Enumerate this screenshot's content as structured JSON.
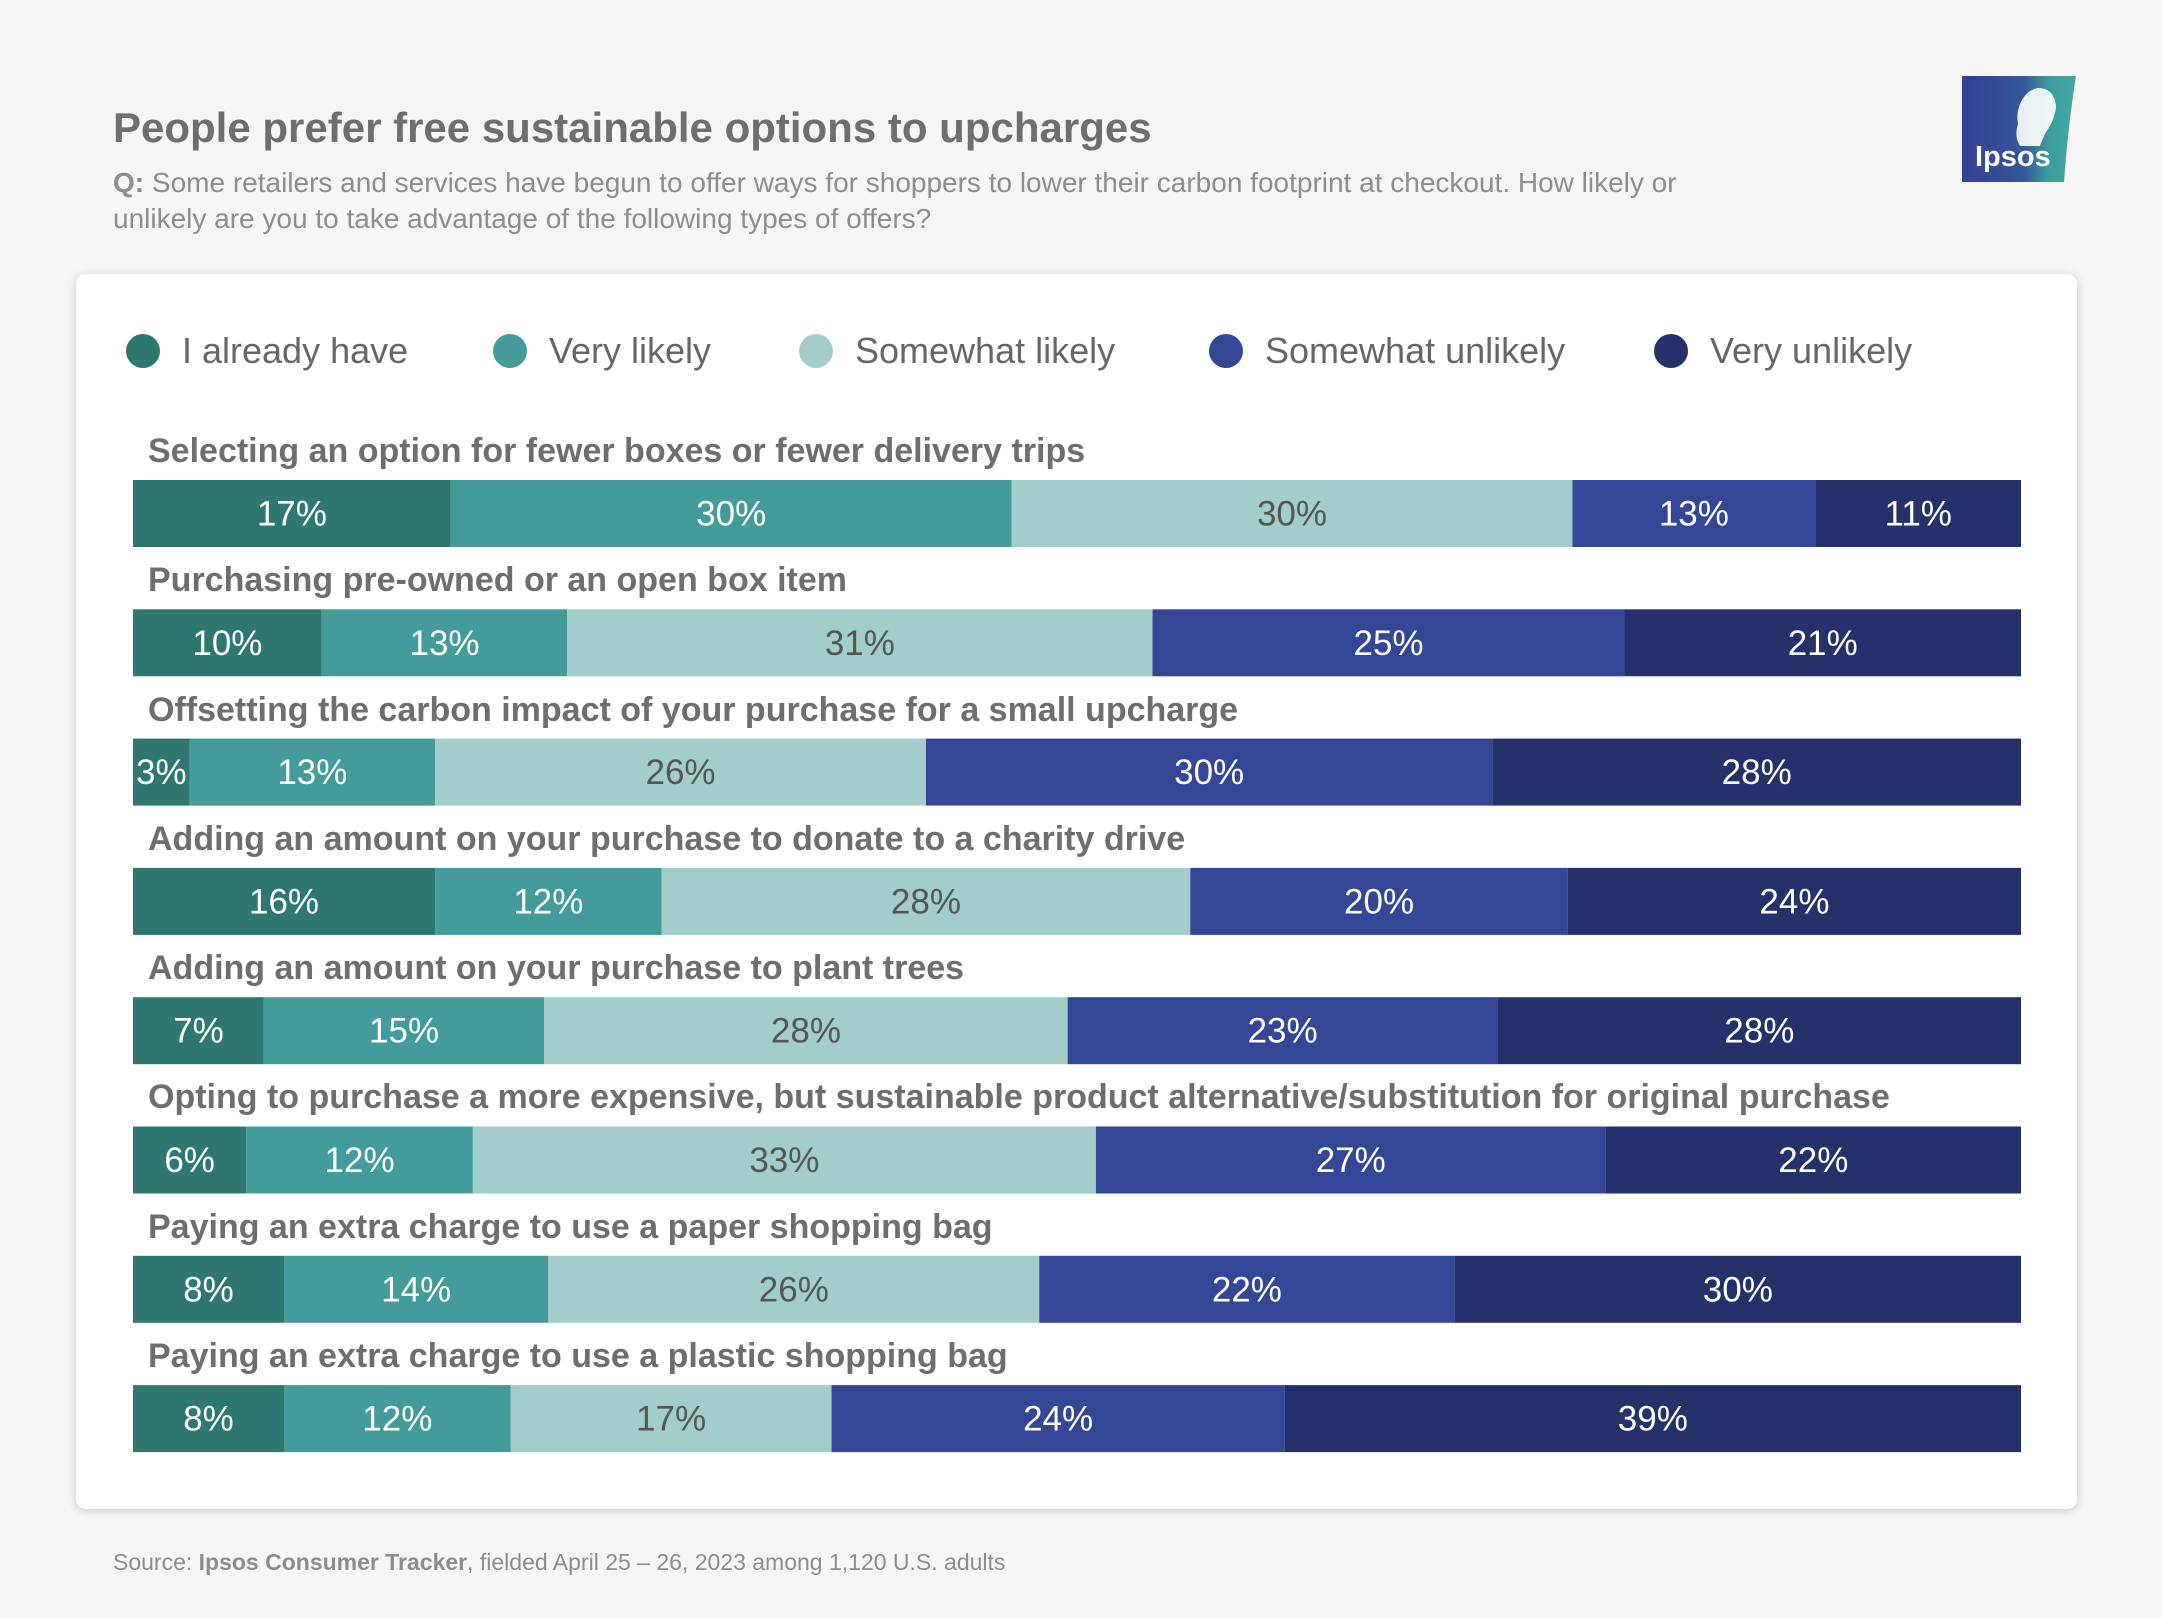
{
  "header": {
    "title": "People prefer free sustainable options to upcharges",
    "question_label": "Q:",
    "question_text": "Some retailers and services have begun to offer ways for shoppers to lower their carbon footprint at checkout. How likely or unlikely are you to take advantage of the following types of offers?"
  },
  "logo": {
    "text": "Ipsos",
    "colors": [
      "#333f94",
      "#3c9c9b"
    ]
  },
  "footer": {
    "source_label": "Source: ",
    "source_name": "Ipsos Consumer Tracker",
    "source_detail": ", fielded April 25 – 26, 2023 among 1,120 U.S. adults"
  },
  "chart_data": {
    "type": "bar",
    "orientation": "horizontal",
    "stacked": true,
    "unit": "%",
    "legend_position": "top",
    "categories": [
      "Selecting an option for fewer boxes or fewer delivery trips",
      "Purchasing pre-owned or an open box item",
      "Offsetting the carbon impact of your purchase for a small upcharge",
      "Adding an amount on your purchase to donate to a charity drive",
      "Adding an amount on your purchase to plant trees",
      "Opting to purchase a more expensive, but sustainable product alternative/substitution for original purchase",
      "Paying an extra charge to use a paper shopping bag",
      "Paying an extra charge to use a plastic shopping bag"
    ],
    "series": [
      {
        "name": "I already have",
        "color": "#2e7871",
        "label_color": "#ffffff",
        "values": [
          17,
          10,
          3,
          16,
          7,
          6,
          8,
          8
        ]
      },
      {
        "name": "Very likely",
        "color": "#439b9a",
        "label_color": "#ffffff",
        "values": [
          30,
          13,
          13,
          12,
          15,
          12,
          14,
          12
        ]
      },
      {
        "name": "Somewhat likely",
        "color": "#a3cdcb",
        "label_color": "#555555",
        "values": [
          30,
          31,
          26,
          28,
          28,
          33,
          26,
          17
        ]
      },
      {
        "name": "Somewhat unlikely",
        "color": "#334796",
        "label_color": "#ffffff",
        "values": [
          13,
          25,
          30,
          20,
          23,
          27,
          22,
          24
        ]
      },
      {
        "name": "Very unlikely",
        "color": "#25316b",
        "label_color": "#ffffff",
        "values": [
          11,
          21,
          28,
          24,
          28,
          22,
          30,
          39
        ]
      }
    ]
  }
}
